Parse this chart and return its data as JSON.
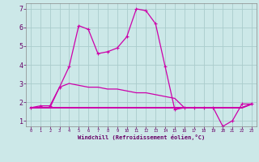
{
  "background_color": "#cce8e8",
  "grid_color": "#aacccc",
  "line_color": "#cc00aa",
  "xlabel": "Windchill (Refroidissement éolien,°C)",
  "xlim": [
    -0.5,
    23.5
  ],
  "ylim": [
    0.7,
    7.3
  ],
  "yticks": [
    1,
    2,
    3,
    4,
    5,
    6,
    7
  ],
  "xticks": [
    0,
    1,
    2,
    3,
    4,
    5,
    6,
    7,
    8,
    9,
    10,
    11,
    12,
    13,
    14,
    15,
    16,
    17,
    18,
    19,
    20,
    21,
    22,
    23
  ],
  "series1_x": [
    0,
    1,
    2,
    3,
    4,
    5,
    6,
    7,
    8,
    9,
    10,
    11,
    12,
    13,
    14,
    15,
    16,
    17,
    18,
    19,
    20,
    21,
    22,
    23
  ],
  "series1_y": [
    1.7,
    1.8,
    1.8,
    2.8,
    3.9,
    6.1,
    5.9,
    4.6,
    4.7,
    4.9,
    5.5,
    7.0,
    6.9,
    6.2,
    3.9,
    1.6,
    1.7,
    1.7,
    1.7,
    1.7,
    0.7,
    1.0,
    1.9,
    1.9
  ],
  "series2_x": [
    0,
    1,
    2,
    3,
    4,
    5,
    6,
    7,
    8,
    9,
    10,
    11,
    12,
    13,
    14,
    15,
    16,
    17,
    18,
    19,
    20,
    21,
    22,
    23
  ],
  "series2_y": [
    1.7,
    1.7,
    1.7,
    1.7,
    1.7,
    1.7,
    1.7,
    1.7,
    1.7,
    1.7,
    1.7,
    1.7,
    1.7,
    1.7,
    1.7,
    1.7,
    1.7,
    1.7,
    1.7,
    1.7,
    1.7,
    1.7,
    1.7,
    1.9
  ],
  "series3_x": [
    0,
    1,
    2,
    3,
    4,
    5,
    6,
    7,
    8,
    9,
    10,
    11,
    12,
    13,
    14,
    15,
    16,
    17,
    18,
    19,
    20,
    21,
    22,
    23
  ],
  "series3_y": [
    1.7,
    1.7,
    1.7,
    2.8,
    3.0,
    2.9,
    2.8,
    2.8,
    2.7,
    2.7,
    2.6,
    2.5,
    2.5,
    2.4,
    2.3,
    2.2,
    1.7,
    1.7,
    1.7,
    1.7,
    1.7,
    1.7,
    1.7,
    1.9
  ],
  "text_color": "#660066",
  "lw_main": 0.9,
  "lw_flat": 1.4,
  "marker_size": 3.5
}
